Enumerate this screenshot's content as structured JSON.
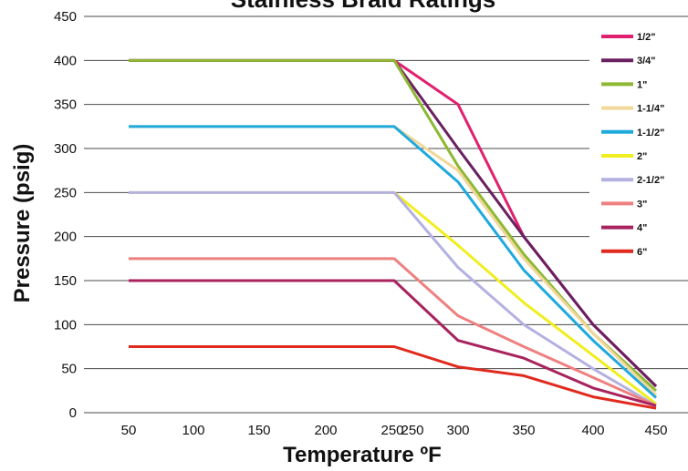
{
  "chart_data": {
    "type": "line",
    "title": "Stainless Braid Ratings",
    "xlabel": "Temperature ºF",
    "ylabel": "Pressure (psig)",
    "x": [
      50,
      250,
      300,
      350,
      400,
      450
    ],
    "x_tick_labels": [
      "50",
      "100",
      "150",
      "200",
      "250",
      "250",
      "300",
      "350",
      "400",
      "450"
    ],
    "y_ticks": [
      0,
      50,
      100,
      150,
      200,
      250,
      300,
      350,
      400,
      450
    ],
    "ylim": [
      0,
      450
    ],
    "grid": true,
    "legend_position": "right",
    "series": [
      {
        "name": "1/2\"",
        "color": "#e0206e",
        "values": [
          400,
          400,
          350,
          200,
          100,
          30
        ]
      },
      {
        "name": "3/4\"",
        "color": "#6a2060",
        "values": [
          400,
          400,
          300,
          200,
          100,
          30
        ]
      },
      {
        "name": "1\"",
        "color": "#8db832",
        "values": [
          400,
          400,
          280,
          180,
          90,
          25
        ]
      },
      {
        "name": "1-1/4\"",
        "color": "#f2d79a",
        "values": [
          325,
          325,
          275,
          175,
          90,
          20
        ]
      },
      {
        "name": "1-1/2\"",
        "color": "#1fa9dc",
        "values": [
          325,
          325,
          262,
          162,
          82,
          17
        ]
      },
      {
        "name": "2\"",
        "color": "#f0ee1e",
        "values": [
          250,
          250,
          190,
          125,
          65,
          10
        ]
      },
      {
        "name": "2-1/2\"",
        "color": "#b4b1e2",
        "values": [
          250,
          250,
          165,
          100,
          50,
          8
        ]
      },
      {
        "name": "3\"",
        "color": "#ee8080",
        "values": [
          175,
          175,
          110,
          75,
          40,
          8
        ]
      },
      {
        "name": "4\"",
        "color": "#a8235e",
        "values": [
          150,
          150,
          82,
          62,
          28,
          8
        ]
      },
      {
        "name": "6\"",
        "color": "#e02a1e",
        "values": [
          75,
          75,
          52,
          42,
          18,
          5
        ]
      }
    ]
  }
}
